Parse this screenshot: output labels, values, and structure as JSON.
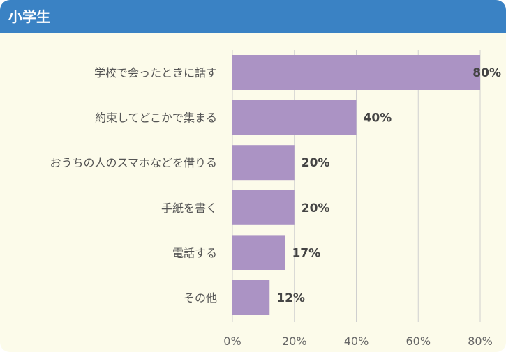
{
  "header": {
    "title": "小学生"
  },
  "colors": {
    "header": "#3a82c4",
    "panel": "#fcfbea",
    "bar": "#ab93c4",
    "grid": "#cfcfcf"
  },
  "chart_data": {
    "type": "bar",
    "orientation": "horizontal",
    "categories": [
      "学校で会ったときに話す",
      "約束してどこかで集まる",
      "おうちの人のスマホなどを借りる",
      "手紙を書く",
      "電話する",
      "その他"
    ],
    "values": [
      80,
      40,
      20,
      20,
      17,
      12
    ],
    "value_labels": [
      "80%",
      "40%",
      "20%",
      "20%",
      "17%",
      "12%"
    ],
    "xlim": [
      0,
      80
    ],
    "xticks": [
      0,
      20,
      40,
      60,
      80
    ],
    "xtick_labels": [
      "0%",
      "20%",
      "40%",
      "60%",
      "80%"
    ],
    "grid": "vertical"
  }
}
